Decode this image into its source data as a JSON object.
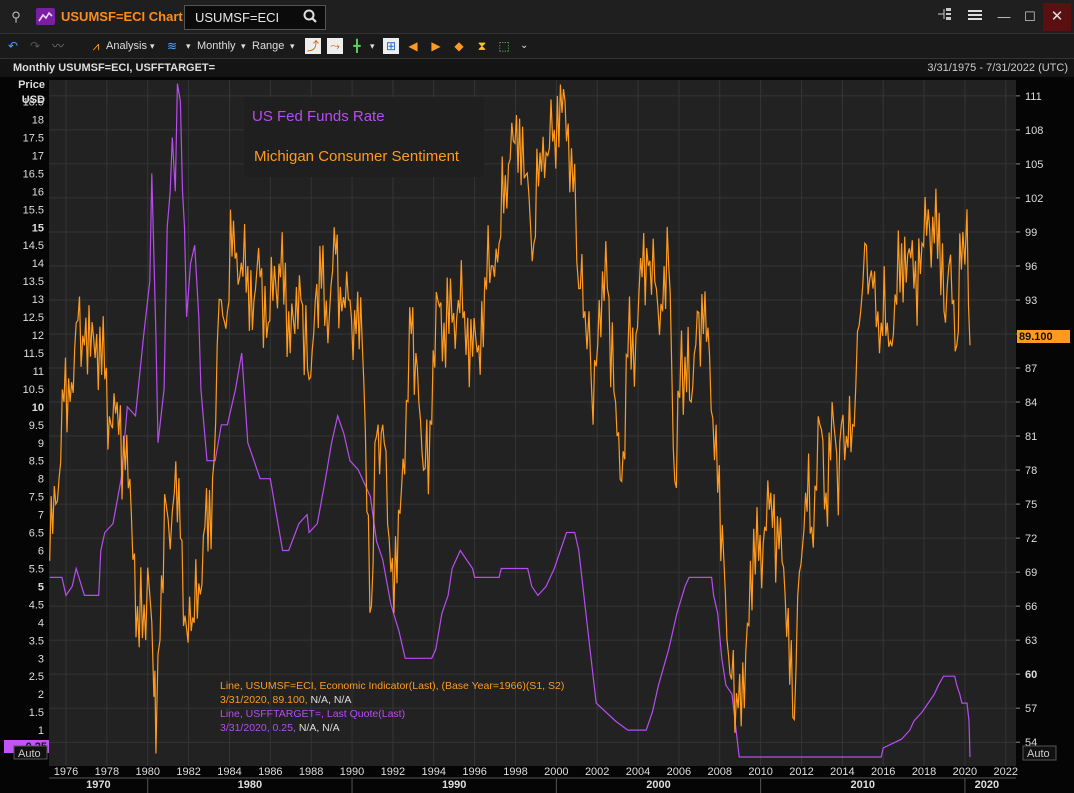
{
  "window": {
    "title": "USUMSF=ECI Chart",
    "ric_input": "USUMSF=ECI",
    "min_glyph": "—",
    "restore_glyph": "☐",
    "close_glyph": "✕"
  },
  "toolbar": {
    "analysis_label": "Analysis",
    "interval_label": "Monthly",
    "range_label": "Range"
  },
  "chart_header": {
    "title": "Monthly USUMSF=ECI, USFFTARGET=",
    "date_range": "3/31/1975 - 7/31/2022 (UTC)"
  },
  "colors": {
    "sentiment": "#ff9a1f",
    "fed": "#b84cf0",
    "background": "#222222",
    "grid": "#353535"
  },
  "chart_data": {
    "type": "line",
    "left_axis": {
      "title_line1": "Price",
      "title_line2": "USD",
      "auto_label": "Auto",
      "min": 0,
      "max": 19.1
    },
    "right_axis": {
      "auto_label": "Auto",
      "min": 51.9,
      "max": 112.4
    },
    "left_ticks": [
      "0.5",
      "1",
      "1.5",
      "2",
      "2.5",
      "3",
      "3.5",
      "4",
      "4.5",
      "5",
      "5.5",
      "6",
      "6.5",
      "7",
      "7.5",
      "8",
      "8.5",
      "9",
      "9.5",
      "10",
      "10.5",
      "11",
      "11.5",
      "12",
      "12.5",
      "13",
      "13.5",
      "14",
      "14.5",
      "15",
      "15.5",
      "16",
      "16.5",
      "17",
      "17.5",
      "18",
      "18.5"
    ],
    "right_ticks": [
      "54",
      "57",
      "60",
      "63",
      "66",
      "69",
      "72",
      "75",
      "78",
      "81",
      "84",
      "87",
      "90",
      "93",
      "96",
      "99",
      "102",
      "105",
      "108",
      "111"
    ],
    "x_range": [
      "1975-03",
      "2022-07"
    ],
    "year_ticks": [
      "1976",
      "1978",
      "1980",
      "1982",
      "1984",
      "1986",
      "1988",
      "1990",
      "1992",
      "1994",
      "1996",
      "1998",
      "2000",
      "2002",
      "2004",
      "2006",
      "2008",
      "2010",
      "2012",
      "2014",
      "2016",
      "2018",
      "2020",
      "2022"
    ],
    "decade_labels": [
      "1970",
      "1980",
      "1990",
      "2000",
      "2010",
      "2020"
    ],
    "last_values": {
      "sentiment": "89.100",
      "fed": "0.25"
    },
    "legend_box": [
      "US Fed Funds Rate",
      "Michigan Consumer Sentiment"
    ],
    "info_lines": {
      "sentiment_desc": "Line, USUMSF=ECI, Economic Indicator(Last), (Base Year=1966)(S1, S2)",
      "sentiment_value": "3/31/2020, 89.100,",
      "sentiment_na": " N/A, N/A",
      "fed_desc": "Line, USFFTARGET=, Last Quote(Last)",
      "fed_value": "3/31/2020, 0.25,",
      "fed_na": " N/A, N/A"
    },
    "series": [
      {
        "name": "US Fed Funds Rate",
        "axis": "left",
        "points": [
          [
            1975.2,
            5.25
          ],
          [
            1975.8,
            5.25
          ],
          [
            1976.0,
            4.75
          ],
          [
            1976.3,
            5.0
          ],
          [
            1976.5,
            5.5
          ],
          [
            1976.9,
            4.75
          ],
          [
            1977.6,
            4.75
          ],
          [
            1977.7,
            6.0
          ],
          [
            1977.9,
            6.5
          ],
          [
            1978.3,
            6.75
          ],
          [
            1978.7,
            8.0
          ],
          [
            1979.0,
            10.0
          ],
          [
            1979.4,
            9.75
          ],
          [
            1979.8,
            12.0
          ],
          [
            1980.1,
            13.5
          ],
          [
            1980.2,
            16.5
          ],
          [
            1980.4,
            12.0
          ],
          [
            1980.5,
            9.0
          ],
          [
            1980.8,
            10.5
          ],
          [
            1980.95,
            15.0
          ],
          [
            1981.1,
            16.0
          ],
          [
            1981.2,
            17.5
          ],
          [
            1981.35,
            16.0
          ],
          [
            1981.45,
            19.0
          ],
          [
            1981.6,
            18.5
          ],
          [
            1981.7,
            16.0
          ],
          [
            1981.8,
            15.0
          ],
          [
            1981.9,
            12.5
          ],
          [
            1982.1,
            14.0
          ],
          [
            1982.3,
            14.5
          ],
          [
            1982.5,
            12.5
          ],
          [
            1982.6,
            10.5
          ],
          [
            1982.75,
            9.5
          ],
          [
            1982.9,
            8.5
          ],
          [
            1983.3,
            8.5
          ],
          [
            1983.6,
            9.5
          ],
          [
            1983.9,
            9.5
          ],
          [
            1984.3,
            10.5
          ],
          [
            1984.6,
            11.5
          ],
          [
            1984.9,
            9.0
          ],
          [
            1985.2,
            8.5
          ],
          [
            1985.5,
            8.0
          ],
          [
            1986.0,
            8.0
          ],
          [
            1986.3,
            7.0
          ],
          [
            1986.6,
            6.0
          ],
          [
            1986.9,
            6.0
          ],
          [
            1987.4,
            6.75
          ],
          [
            1987.8,
            7.0
          ],
          [
            1987.9,
            6.5
          ],
          [
            1988.3,
            6.75
          ],
          [
            1988.7,
            8.0
          ],
          [
            1989.0,
            9.0
          ],
          [
            1989.3,
            9.75
          ],
          [
            1989.6,
            9.25
          ],
          [
            1989.9,
            8.5
          ],
          [
            1990.3,
            8.25
          ],
          [
            1990.9,
            7.5
          ],
          [
            1991.2,
            6.25
          ],
          [
            1991.5,
            5.75
          ],
          [
            1991.9,
            4.5
          ],
          [
            1992.3,
            3.75
          ],
          [
            1992.6,
            3.0
          ],
          [
            1993.9,
            3.0
          ],
          [
            1994.1,
            3.25
          ],
          [
            1994.4,
            4.25
          ],
          [
            1994.7,
            4.75
          ],
          [
            1994.9,
            5.5
          ],
          [
            1995.3,
            6.0
          ],
          [
            1995.6,
            5.75
          ],
          [
            1995.9,
            5.5
          ],
          [
            1996.0,
            5.25
          ],
          [
            1997.2,
            5.25
          ],
          [
            1997.3,
            5.5
          ],
          [
            1998.6,
            5.5
          ],
          [
            1998.8,
            5.0
          ],
          [
            1999.1,
            4.75
          ],
          [
            1999.5,
            5.0
          ],
          [
            1999.9,
            5.5
          ],
          [
            2000.2,
            6.0
          ],
          [
            2000.5,
            6.5
          ],
          [
            2000.9,
            6.5
          ],
          [
            2001.1,
            6.0
          ],
          [
            2001.4,
            4.5
          ],
          [
            2001.6,
            3.5
          ],
          [
            2001.8,
            2.5
          ],
          [
            2001.95,
            1.75
          ],
          [
            2002.9,
            1.25
          ],
          [
            2003.5,
            1.0
          ],
          [
            2004.4,
            1.0
          ],
          [
            2004.7,
            1.5
          ],
          [
            2005.0,
            2.25
          ],
          [
            2005.5,
            3.25
          ],
          [
            2005.9,
            4.25
          ],
          [
            2006.3,
            5.0
          ],
          [
            2006.5,
            5.25
          ],
          [
            2007.6,
            5.25
          ],
          [
            2007.7,
            4.75
          ],
          [
            2007.9,
            4.25
          ],
          [
            2008.1,
            3.0
          ],
          [
            2008.3,
            2.25
          ],
          [
            2008.6,
            2.0
          ],
          [
            2008.8,
            1.0
          ],
          [
            2008.95,
            0.25
          ],
          [
            2015.9,
            0.25
          ],
          [
            2016.0,
            0.5
          ],
          [
            2016.9,
            0.75
          ],
          [
            2017.3,
            1.0
          ],
          [
            2017.5,
            1.25
          ],
          [
            2017.9,
            1.5
          ],
          [
            2018.2,
            1.75
          ],
          [
            2018.5,
            2.0
          ],
          [
            2018.7,
            2.25
          ],
          [
            2018.95,
            2.5
          ],
          [
            2019.5,
            2.5
          ],
          [
            2019.6,
            2.25
          ],
          [
            2019.75,
            2.0
          ],
          [
            2019.85,
            1.75
          ],
          [
            2020.1,
            1.75
          ],
          [
            2020.2,
            1.25
          ],
          [
            2020.25,
            0.25
          ]
        ]
      },
      {
        "name": "Michigan Consumer Sentiment",
        "axis": "right",
        "points": [
          [
            1975.2,
            70
          ],
          [
            1975.5,
            75
          ],
          [
            1975.9,
            84
          ],
          [
            1976.2,
            84
          ],
          [
            1976.5,
            91
          ],
          [
            1976.9,
            89
          ],
          [
            1977.2,
            88
          ],
          [
            1977.5,
            90
          ],
          [
            1977.9,
            86
          ],
          [
            1978.2,
            82
          ],
          [
            1978.5,
            84
          ],
          [
            1978.9,
            78
          ],
          [
            1979.2,
            74
          ],
          [
            1979.5,
            66
          ],
          [
            1979.9,
            63
          ],
          [
            1980.1,
            67
          ],
          [
            1980.3,
            58
          ],
          [
            1980.4,
            53
          ],
          [
            1980.6,
            63
          ],
          [
            1980.9,
            75
          ],
          [
            1981.1,
            71
          ],
          [
            1981.3,
            76
          ],
          [
            1981.6,
            72
          ],
          [
            1981.9,
            64
          ],
          [
            1982.2,
            65
          ],
          [
            1982.5,
            68
          ],
          [
            1982.8,
            73
          ],
          [
            1983.1,
            71
          ],
          [
            1983.4,
            89
          ],
          [
            1983.6,
            93
          ],
          [
            1983.9,
            92
          ],
          [
            1984.2,
            100
          ],
          [
            1984.5,
            95
          ],
          [
            1984.9,
            96
          ],
          [
            1985.2,
            93
          ],
          [
            1985.5,
            95
          ],
          [
            1985.9,
            91
          ],
          [
            1986.2,
            96
          ],
          [
            1986.5,
            95
          ],
          [
            1986.9,
            92
          ],
          [
            1987.2,
            90
          ],
          [
            1987.5,
            93
          ],
          [
            1987.9,
            86
          ],
          [
            1988.2,
            93
          ],
          [
            1988.5,
            94
          ],
          [
            1988.9,
            92
          ],
          [
            1989.2,
            97
          ],
          [
            1989.5,
            92
          ],
          [
            1989.9,
            93
          ],
          [
            1990.2,
            90
          ],
          [
            1990.5,
            89
          ],
          [
            1990.8,
            74
          ],
          [
            1990.95,
            66
          ],
          [
            1991.2,
            81
          ],
          [
            1991.5,
            82
          ],
          [
            1991.9,
            69
          ],
          [
            1992.2,
            68
          ],
          [
            1992.5,
            79
          ],
          [
            1992.9,
            90
          ],
          [
            1993.2,
            87
          ],
          [
            1993.5,
            78
          ],
          [
            1993.9,
            82
          ],
          [
            1994.2,
            93
          ],
          [
            1994.5,
            91
          ],
          [
            1994.9,
            91
          ],
          [
            1995.2,
            93
          ],
          [
            1995.5,
            92
          ],
          [
            1995.9,
            88
          ],
          [
            1996.2,
            89
          ],
          [
            1996.5,
            95
          ],
          [
            1996.9,
            96
          ],
          [
            1997.2,
            98
          ],
          [
            1997.5,
            104
          ],
          [
            1997.9,
            107
          ],
          [
            1998.2,
            109
          ],
          [
            1998.5,
            104
          ],
          [
            1998.9,
            98
          ],
          [
            1999.2,
            106
          ],
          [
            1999.5,
            106
          ],
          [
            1999.9,
            108
          ],
          [
            2000.2,
            112
          ],
          [
            2000.5,
            107
          ],
          [
            2000.9,
            105
          ],
          [
            2001.1,
            94
          ],
          [
            2001.4,
            92
          ],
          [
            2001.6,
            92
          ],
          [
            2001.8,
            82
          ],
          [
            2002.1,
            93
          ],
          [
            2002.5,
            94
          ],
          [
            2002.9,
            84
          ],
          [
            2003.2,
            77
          ],
          [
            2003.5,
            88
          ],
          [
            2003.9,
            90
          ],
          [
            2004.2,
            95
          ],
          [
            2004.5,
            96
          ],
          [
            2004.9,
            94
          ],
          [
            2005.2,
            92
          ],
          [
            2005.5,
            96
          ],
          [
            2005.8,
            77
          ],
          [
            2005.95,
            85
          ],
          [
            2006.3,
            88
          ],
          [
            2006.6,
            84
          ],
          [
            2006.9,
            92
          ],
          [
            2007.2,
            90
          ],
          [
            2007.5,
            88
          ],
          [
            2007.9,
            76
          ],
          [
            2008.2,
            70
          ],
          [
            2008.5,
            60
          ],
          [
            2008.9,
            57
          ],
          [
            2009.2,
            57
          ],
          [
            2009.5,
            70
          ],
          [
            2009.9,
            70
          ],
          [
            2010.2,
            73
          ],
          [
            2010.5,
            76
          ],
          [
            2010.9,
            71
          ],
          [
            2011.2,
            67
          ],
          [
            2011.5,
            63
          ],
          [
            2011.65,
            56
          ],
          [
            2011.9,
            69
          ],
          [
            2012.2,
            76
          ],
          [
            2012.5,
            73
          ],
          [
            2012.9,
            82
          ],
          [
            2013.2,
            76
          ],
          [
            2013.5,
            84
          ],
          [
            2013.8,
            74
          ],
          [
            2013.95,
            82
          ],
          [
            2014.2,
            81
          ],
          [
            2014.5,
            82
          ],
          [
            2014.9,
            92
          ],
          [
            2015.1,
            98
          ],
          [
            2015.5,
            94
          ],
          [
            2015.9,
            91
          ],
          [
            2016.2,
            91
          ],
          [
            2016.5,
            90
          ],
          [
            2016.9,
            98
          ],
          [
            2017.2,
            97
          ],
          [
            2017.5,
            94
          ],
          [
            2017.9,
            98
          ],
          [
            2018.2,
            101
          ],
          [
            2018.5,
            98
          ],
          [
            2018.9,
            98
          ],
          [
            2019.05,
            91
          ],
          [
            2019.3,
            97
          ],
          [
            2019.6,
            89
          ],
          [
            2019.9,
            99
          ],
          [
            2020.1,
            101
          ],
          [
            2020.25,
            89
          ]
        ]
      }
    ]
  }
}
